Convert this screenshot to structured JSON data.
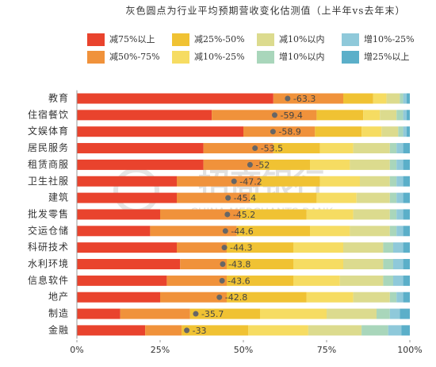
{
  "chart_data": {
    "type": "stacked-barh",
    "title": "灰色圆点为行业平均预期营收变化估测值（上半年vs去年末）",
    "categories": [
      "教育",
      "住宿餐饮",
      "文娱体育",
      "居民服务",
      "租赁商服",
      "卫生社服",
      "建筑",
      "批发零售",
      "交运仓储",
      "科研技术",
      "水利环境",
      "信息软件",
      "地产",
      "制造",
      "金融"
    ],
    "series": [
      {
        "name": "减75%以上",
        "color": "#e9432d",
        "values": [
          59,
          40.5,
          50,
          38,
          38,
          30,
          30,
          25,
          22,
          30,
          31,
          27,
          25,
          13,
          20.5
        ]
      },
      {
        "name": "减50%-75%",
        "color": "#f0923b",
        "values": [
          21,
          31.5,
          21.5,
          21,
          17,
          25,
          22,
          24,
          26,
          15,
          14,
          18,
          20,
          21,
          11
        ]
      },
      {
        "name": "减25%-50%",
        "color": "#f0c233",
        "values": [
          9,
          14,
          14,
          14,
          15,
          18,
          20,
          20,
          22,
          20,
          20,
          20,
          24,
          21,
          20
        ]
      },
      {
        "name": "减10%-25%",
        "color": "#f6dc62",
        "values": [
          4,
          5,
          6,
          10,
          12,
          12,
          12,
          14,
          12,
          15,
          15,
          14,
          14,
          20,
          18
        ]
      },
      {
        "name": "减10%以内",
        "color": "#dcdb8e",
        "values": [
          4,
          5,
          5,
          11,
          12,
          9,
          10,
          11,
          12,
          12,
          12,
          13,
          11,
          15,
          16
        ]
      },
      {
        "name": "增10%以内",
        "color": "#a9d6bb",
        "values": [
          1,
          2,
          1.5,
          2,
          2,
          2,
          2,
          2,
          2,
          3,
          3,
          3,
          2,
          4,
          8
        ]
      },
      {
        "name": "增10%-25%",
        "color": "#8fc9da",
        "values": [
          1,
          1,
          1,
          2,
          2,
          2,
          2,
          2,
          2,
          3,
          3,
          3,
          2,
          3,
          4
        ]
      },
      {
        "name": "增25%以上",
        "color": "#5bafc9",
        "values": [
          1,
          1,
          1,
          2,
          2,
          2,
          2,
          2,
          2,
          2,
          2,
          2,
          2,
          3,
          2.5
        ]
      }
    ],
    "averages": {
      "color": "#666666",
      "values": [
        -63.3,
        -59.4,
        -58.9,
        -53.5,
        -52,
        -47.2,
        -45.4,
        -45.2,
        -44.6,
        -44.3,
        -43.8,
        -43.6,
        -42.8,
        -35.7,
        -33
      ]
    },
    "xlim": [
      0,
      100
    ],
    "xticks": [
      {
        "value": 0,
        "label": "0%"
      },
      {
        "value": 25,
        "label": "25%"
      },
      {
        "value": 50,
        "label": "50%"
      },
      {
        "value": 75,
        "label": "75%"
      },
      {
        "value": 100,
        "label": "100%"
      }
    ]
  },
  "watermark": {
    "cn": "招商银行",
    "en": "CHINA MERCHANTS BANK"
  }
}
